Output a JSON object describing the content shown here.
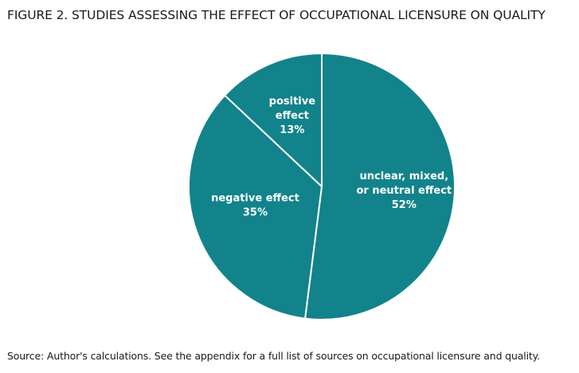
{
  "figure": {
    "title": "FIGURE 2. STUDIES ASSESSING THE EFFECT OF OCCUPATIONAL LICENSURE ON QUALITY",
    "source": "Source: Author's calculations. See the appendix for a full list of sources on occupational licensure and quality."
  },
  "chart_data": {
    "type": "pie",
    "title": "FIGURE 2. STUDIES ASSESSING THE EFFECT OF OCCUPATIONAL LICENSURE ON QUALITY",
    "slices": [
      {
        "label_lines": [
          "unclear, mixed,",
          "or neutral effect"
        ],
        "value": 52,
        "value_label": "52%"
      },
      {
        "label_lines": [
          "negative effect"
        ],
        "value": 35,
        "value_label": "35%"
      },
      {
        "label_lines": [
          "positive",
          "effect"
        ],
        "value": 13,
        "value_label": "13%"
      }
    ],
    "start_angle": "12 o'clock",
    "direction": "clockwise",
    "colors": {
      "slice_fill": "#12838b",
      "slice_border": "#ffffff",
      "label_text": "#ffffff"
    }
  }
}
